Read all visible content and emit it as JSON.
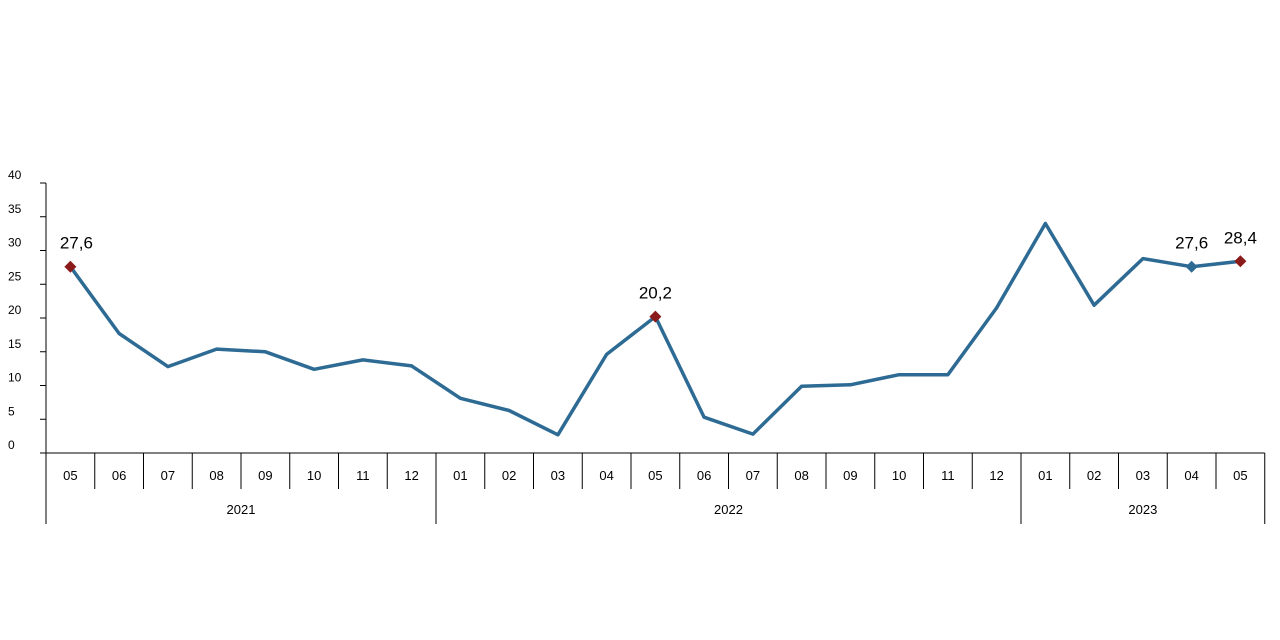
{
  "chart_data": {
    "type": "line",
    "title": "",
    "xlabel": "",
    "ylabel": "",
    "ylim": [
      0,
      40
    ],
    "yticks": [
      "0",
      "5",
      "10",
      "15",
      "20",
      "25",
      "30",
      "35",
      "40"
    ],
    "grid": false,
    "categories": [
      "05",
      "06",
      "07",
      "08",
      "09",
      "10",
      "11",
      "12",
      "01",
      "02",
      "03",
      "04",
      "05",
      "06",
      "07",
      "08",
      "09",
      "10",
      "11",
      "12",
      "01",
      "02",
      "03",
      "04",
      "05"
    ],
    "years": [
      {
        "label": "2021",
        "span": 8
      },
      {
        "label": "2022",
        "span": 12
      },
      {
        "label": "2023",
        "span": 5
      }
    ],
    "series": [
      {
        "color": "#2e6b94",
        "values": [
          27.6,
          17.7,
          12.8,
          15.4,
          15.0,
          12.4,
          13.8,
          12.9,
          8.1,
          6.3,
          2.7,
          14.6,
          20.2,
          5.3,
          2.8,
          9.9,
          10.1,
          11.6,
          11.6,
          21.5,
          34.0,
          21.9,
          28.8,
          27.6,
          28.4
        ]
      }
    ],
    "annotations": [
      {
        "index": 0,
        "label": "27,6",
        "marker_color": "#8b1a1a"
      },
      {
        "index": 12,
        "label": "20,2",
        "marker_color": "#8b1a1a"
      },
      {
        "index": 23,
        "label": "27,6",
        "marker_color": "#2e6b94"
      },
      {
        "index": 24,
        "label": "28,4",
        "marker_color": "#8b1a1a"
      }
    ]
  }
}
